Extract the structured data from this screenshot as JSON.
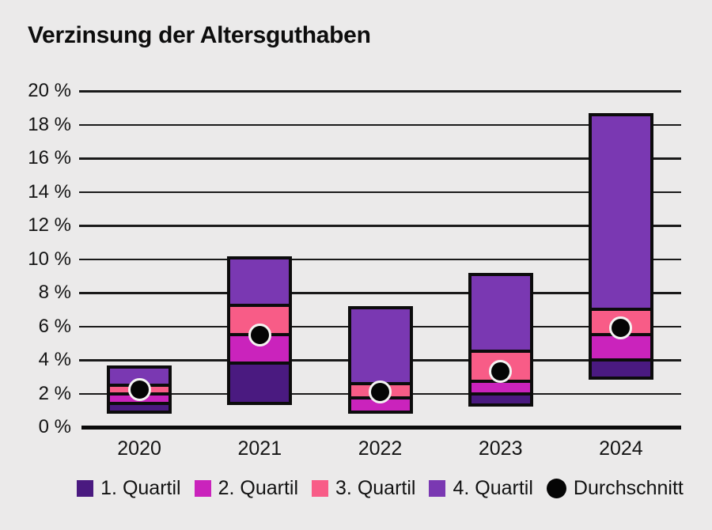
{
  "page": {
    "title": "Verzinsung der Altersguthaben"
  },
  "colors": {
    "background": "#ebeaea",
    "text": "#141414",
    "grid": "#1a1a1a",
    "axis": "#0a0a0a",
    "bar_border": "#0c0c0c",
    "avg_fill": "#050505",
    "avg_ring": "#f4f3f2"
  },
  "chart_data": {
    "type": "bar",
    "variant": "stacked-quartile-ranges",
    "title": "Verzinsung der Altersguthaben",
    "unit": "%",
    "grid": true,
    "legend_position": "bottom",
    "ylim": [
      0,
      20
    ],
    "ytick_step": 2,
    "ytick_labels": [
      "0 %",
      "2 %",
      "4 %",
      "6 %",
      "8 %",
      "10 %",
      "12 %",
      "14 %",
      "16 %",
      "18 %",
      "20 %"
    ],
    "categories": [
      "2020",
      "2021",
      "2022",
      "2023",
      "2024"
    ],
    "series": [
      {
        "name": "1. Quartil",
        "color": "#4a1a80",
        "span": "min-q1"
      },
      {
        "name": "2. Quartil",
        "color": "#ca23bc",
        "span": "q1-median"
      },
      {
        "name": "3. Quartil",
        "color": "#f85c87",
        "span": "median-q3"
      },
      {
        "name": "4. Quartil",
        "color": "#7a38b2",
        "span": "q3-max"
      }
    ],
    "average_marker": {
      "name": "Durchschnitt",
      "shape": "circle",
      "color": "#050505"
    },
    "bars": [
      {
        "year": "2020",
        "min": 1.0,
        "q1": 1.4,
        "median": 2.0,
        "q3": 2.5,
        "max": 3.5,
        "avg": 2.25
      },
      {
        "year": "2021",
        "min": 1.5,
        "q1": 3.8,
        "median": 5.5,
        "q3": 7.25,
        "max": 10.0,
        "avg": 5.5
      },
      {
        "year": "2022",
        "min": 1.0,
        "q1": 1.0,
        "median": 1.75,
        "q3": 2.6,
        "max": 7.0,
        "avg": 2.1
      },
      {
        "year": "2023",
        "min": 1.4,
        "q1": 2.0,
        "median": 2.75,
        "q3": 4.5,
        "max": 9.0,
        "avg": 3.3
      },
      {
        "year": "2024",
        "min": 3.0,
        "q1": 4.0,
        "median": 5.5,
        "q3": 7.0,
        "max": 18.5,
        "avg": 5.9
      }
    ]
  },
  "legend": {
    "items": [
      {
        "label": "1. Quartil",
        "swatch": "square",
        "color": "#4a1a80"
      },
      {
        "label": "2. Quartil",
        "swatch": "square",
        "color": "#ca23bc"
      },
      {
        "label": "3. Quartil",
        "swatch": "square",
        "color": "#f85c87"
      },
      {
        "label": "4. Quartil",
        "swatch": "square",
        "color": "#7a38b2"
      },
      {
        "label": "Durchschnitt",
        "swatch": "circle",
        "color": "#050505"
      }
    ]
  }
}
